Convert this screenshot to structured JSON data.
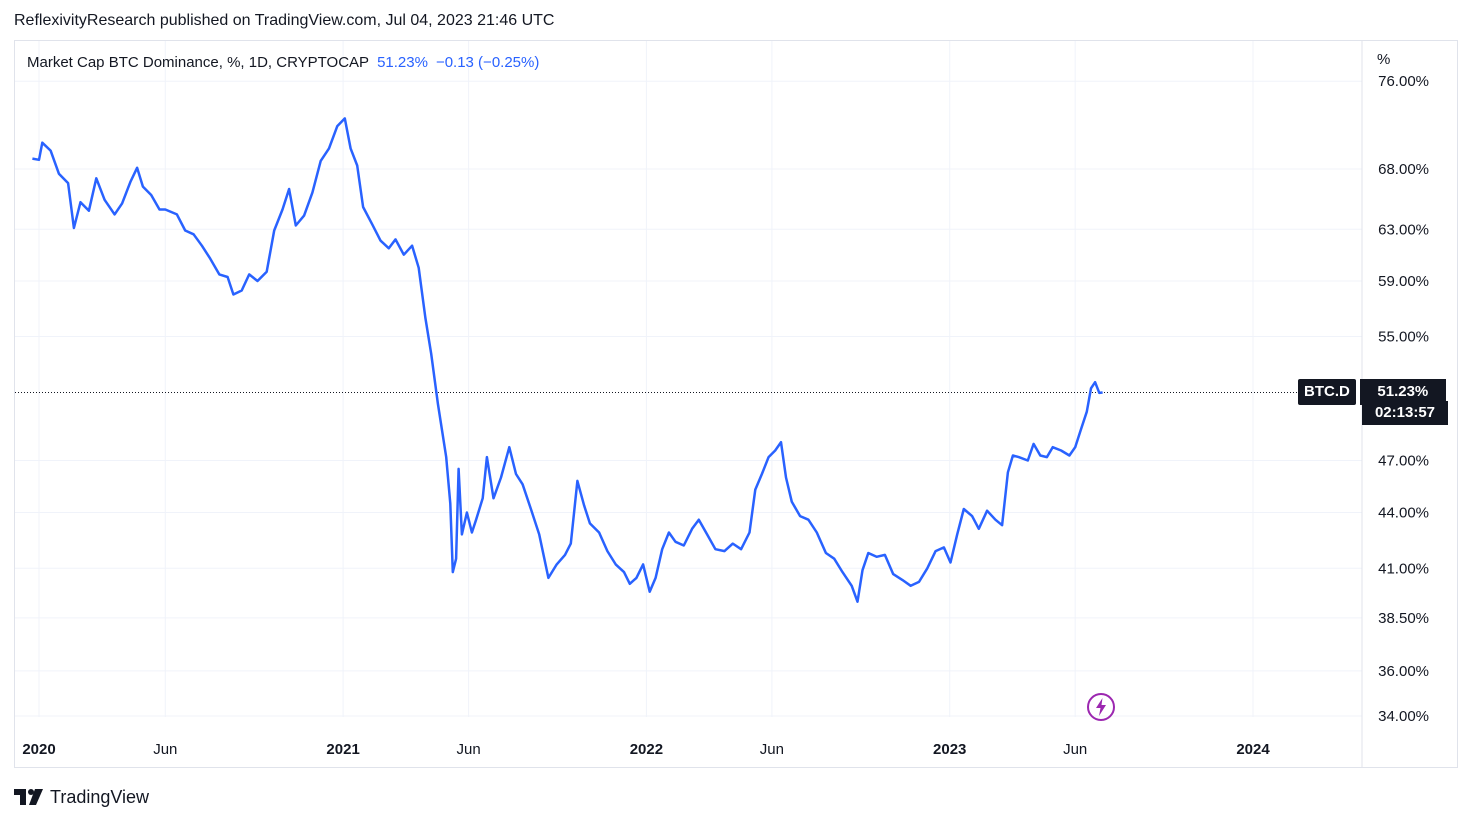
{
  "publisher_line": "ReflexivityResearch published on TradingView.com, Jul 04, 2023 21:46 UTC",
  "legend": {
    "symbol_text": "Market Cap BTC Dominance, %, 1D, CRYPTOCAP",
    "value": "51.23%",
    "change": "−0.13 (−0.25%)"
  },
  "unit_label": "%",
  "badge": {
    "symbol": "BTC.D",
    "value": "51.23%",
    "timer": "02:13:57"
  },
  "footer": {
    "brand": "TradingView"
  },
  "colors": {
    "line": "#2962ff",
    "grid": "#f0f3fa",
    "text": "#131722"
  },
  "icons": [
    "tradingview-logo-icon",
    "flash-icon"
  ],
  "chart_data": {
    "type": "line",
    "title": "",
    "xlabel": "",
    "ylabel": "%",
    "scale": "log",
    "ylim": [
      33.5,
      77
    ],
    "y_ticks": [
      {
        "value": 76,
        "label": "76.00%"
      },
      {
        "value": 68,
        "label": "68.00%"
      },
      {
        "value": 63,
        "label": "63.00%"
      },
      {
        "value": 59,
        "label": "59.00%"
      },
      {
        "value": 55,
        "label": "55.00%"
      },
      {
        "value": 47,
        "label": "47.00%"
      },
      {
        "value": 44,
        "label": "44.00%"
      },
      {
        "value": 41,
        "label": "41.00%"
      },
      {
        "value": 38.5,
        "label": "38.50%"
      },
      {
        "value": 36,
        "label": "36.00%"
      },
      {
        "value": 34,
        "label": "34.00%"
      }
    ],
    "x_ticks": [
      {
        "value": "2020-01-01",
        "label": "2020",
        "bold": true
      },
      {
        "value": "2020-06-01",
        "label": "Jun",
        "bold": false
      },
      {
        "value": "2021-01-01",
        "label": "2021",
        "bold": true
      },
      {
        "value": "2021-06-01",
        "label": "Jun",
        "bold": false
      },
      {
        "value": "2022-01-01",
        "label": "2022",
        "bold": true
      },
      {
        "value": "2022-06-01",
        "label": "Jun",
        "bold": false
      },
      {
        "value": "2023-01-01",
        "label": "2023",
        "bold": true
      },
      {
        "value": "2023-06-01",
        "label": "Jun",
        "bold": false
      },
      {
        "value": "2024-01-01",
        "label": "2024",
        "bold": true
      }
    ],
    "last_value": 51.23,
    "series": [
      {
        "values": [
          [
            "2019-12-24",
            68.9
          ],
          [
            "2020-01-01",
            68.8
          ],
          [
            "2020-01-05",
            70.3
          ],
          [
            "2020-01-15",
            69.6
          ],
          [
            "2020-01-25",
            67.6
          ],
          [
            "2020-02-05",
            66.8
          ],
          [
            "2020-02-12",
            63.1
          ],
          [
            "2020-02-20",
            65.2
          ],
          [
            "2020-03-01",
            64.5
          ],
          [
            "2020-03-10",
            67.2
          ],
          [
            "2020-03-20",
            65.4
          ],
          [
            "2020-04-01",
            64.2
          ],
          [
            "2020-04-10",
            65.1
          ],
          [
            "2020-04-20",
            66.9
          ],
          [
            "2020-04-28",
            68.1
          ],
          [
            "2020-05-05",
            66.5
          ],
          [
            "2020-05-15",
            65.8
          ],
          [
            "2020-05-25",
            64.6
          ],
          [
            "2020-06-01",
            64.6
          ],
          [
            "2020-06-15",
            64.2
          ],
          [
            "2020-06-25",
            62.9
          ],
          [
            "2020-07-05",
            62.6
          ],
          [
            "2020-07-15",
            61.7
          ],
          [
            "2020-07-25",
            60.7
          ],
          [
            "2020-08-05",
            59.5
          ],
          [
            "2020-08-15",
            59.3
          ],
          [
            "2020-08-22",
            58.0
          ],
          [
            "2020-09-01",
            58.3
          ],
          [
            "2020-09-10",
            59.5
          ],
          [
            "2020-09-20",
            59.0
          ],
          [
            "2020-10-01",
            59.7
          ],
          [
            "2020-10-10",
            62.9
          ],
          [
            "2020-10-20",
            64.6
          ],
          [
            "2020-10-28",
            66.3
          ],
          [
            "2020-11-05",
            63.3
          ],
          [
            "2020-11-15",
            64.1
          ],
          [
            "2020-11-25",
            66.0
          ],
          [
            "2020-12-05",
            68.7
          ],
          [
            "2020-12-15",
            69.8
          ],
          [
            "2020-12-25",
            71.8
          ],
          [
            "2021-01-03",
            72.5
          ],
          [
            "2021-01-10",
            69.8
          ],
          [
            "2021-01-18",
            68.3
          ],
          [
            "2021-01-25",
            64.8
          ],
          [
            "2021-02-05",
            63.4
          ],
          [
            "2021-02-15",
            62.1
          ],
          [
            "2021-02-25",
            61.5
          ],
          [
            "2021-03-05",
            62.2
          ],
          [
            "2021-03-15",
            61.0
          ],
          [
            "2021-03-25",
            61.7
          ],
          [
            "2021-04-02",
            60.0
          ],
          [
            "2021-04-10",
            56.3
          ],
          [
            "2021-04-17",
            53.8
          ],
          [
            "2021-04-25",
            50.5
          ],
          [
            "2021-05-05",
            47.2
          ],
          [
            "2021-05-10",
            44.5
          ],
          [
            "2021-05-13",
            40.8
          ],
          [
            "2021-05-17",
            41.5
          ],
          [
            "2021-05-20",
            46.5
          ],
          [
            "2021-05-24",
            42.8
          ],
          [
            "2021-05-30",
            44.0
          ],
          [
            "2021-06-05",
            42.9
          ],
          [
            "2021-06-10",
            43.6
          ],
          [
            "2021-06-18",
            44.8
          ],
          [
            "2021-06-23",
            47.2
          ],
          [
            "2021-07-01",
            44.8
          ],
          [
            "2021-07-10",
            46.0
          ],
          [
            "2021-07-20",
            47.8
          ],
          [
            "2021-07-28",
            46.2
          ],
          [
            "2021-08-05",
            45.6
          ],
          [
            "2021-08-15",
            44.2
          ],
          [
            "2021-08-25",
            42.8
          ],
          [
            "2021-09-05",
            40.5
          ],
          [
            "2021-09-15",
            41.2
          ],
          [
            "2021-09-25",
            41.7
          ],
          [
            "2021-10-02",
            42.3
          ],
          [
            "2021-10-10",
            45.8
          ],
          [
            "2021-10-18",
            44.4
          ],
          [
            "2021-10-25",
            43.4
          ],
          [
            "2021-11-05",
            42.9
          ],
          [
            "2021-11-15",
            41.9
          ],
          [
            "2021-11-25",
            41.2
          ],
          [
            "2021-12-05",
            40.8
          ],
          [
            "2021-12-12",
            40.2
          ],
          [
            "2021-12-20",
            40.5
          ],
          [
            "2021-12-28",
            41.2
          ],
          [
            "2022-01-05",
            39.8
          ],
          [
            "2022-01-12",
            40.5
          ],
          [
            "2022-01-20",
            42.0
          ],
          [
            "2022-01-28",
            42.9
          ],
          [
            "2022-02-05",
            42.4
          ],
          [
            "2022-02-15",
            42.2
          ],
          [
            "2022-02-25",
            43.1
          ],
          [
            "2022-03-05",
            43.6
          ],
          [
            "2022-03-15",
            42.8
          ],
          [
            "2022-03-25",
            42.0
          ],
          [
            "2022-04-05",
            41.9
          ],
          [
            "2022-04-15",
            42.3
          ],
          [
            "2022-04-25",
            42.0
          ],
          [
            "2022-05-05",
            42.9
          ],
          [
            "2022-05-12",
            45.3
          ],
          [
            "2022-05-20",
            46.2
          ],
          [
            "2022-05-28",
            47.2
          ],
          [
            "2022-06-05",
            47.6
          ],
          [
            "2022-06-12",
            48.1
          ],
          [
            "2022-06-18",
            46.0
          ],
          [
            "2022-06-25",
            44.6
          ],
          [
            "2022-07-05",
            43.8
          ],
          [
            "2022-07-15",
            43.6
          ],
          [
            "2022-07-25",
            42.9
          ],
          [
            "2022-08-05",
            41.8
          ],
          [
            "2022-08-15",
            41.5
          ],
          [
            "2022-08-25",
            40.8
          ],
          [
            "2022-09-05",
            40.1
          ],
          [
            "2022-09-12",
            39.3
          ],
          [
            "2022-09-18",
            40.9
          ],
          [
            "2022-09-25",
            41.8
          ],
          [
            "2022-10-05",
            41.6
          ],
          [
            "2022-10-15",
            41.7
          ],
          [
            "2022-10-25",
            40.7
          ],
          [
            "2022-11-05",
            40.4
          ],
          [
            "2022-11-15",
            40.1
          ],
          [
            "2022-11-25",
            40.3
          ],
          [
            "2022-12-05",
            41.0
          ],
          [
            "2022-12-15",
            41.9
          ],
          [
            "2022-12-25",
            42.1
          ],
          [
            "2023-01-02",
            41.3
          ],
          [
            "2023-01-10",
            42.8
          ],
          [
            "2023-01-18",
            44.2
          ],
          [
            "2023-01-28",
            43.8
          ],
          [
            "2023-02-05",
            43.1
          ],
          [
            "2023-02-15",
            44.1
          ],
          [
            "2023-02-25",
            43.6
          ],
          [
            "2023-03-05",
            43.3
          ],
          [
            "2023-03-12",
            46.3
          ],
          [
            "2023-03-18",
            47.3
          ],
          [
            "2023-03-25",
            47.2
          ],
          [
            "2023-04-05",
            47.0
          ],
          [
            "2023-04-12",
            48.0
          ],
          [
            "2023-04-20",
            47.3
          ],
          [
            "2023-04-28",
            47.2
          ],
          [
            "2023-05-05",
            47.8
          ],
          [
            "2023-05-15",
            47.6
          ],
          [
            "2023-05-25",
            47.3
          ],
          [
            "2023-06-01",
            47.8
          ],
          [
            "2023-06-08",
            48.9
          ],
          [
            "2023-06-15",
            50.0
          ],
          [
            "2023-06-20",
            51.5
          ],
          [
            "2023-06-25",
            51.9
          ],
          [
            "2023-06-30",
            51.2
          ],
          [
            "2023-07-04",
            51.23
          ]
        ]
      }
    ]
  }
}
